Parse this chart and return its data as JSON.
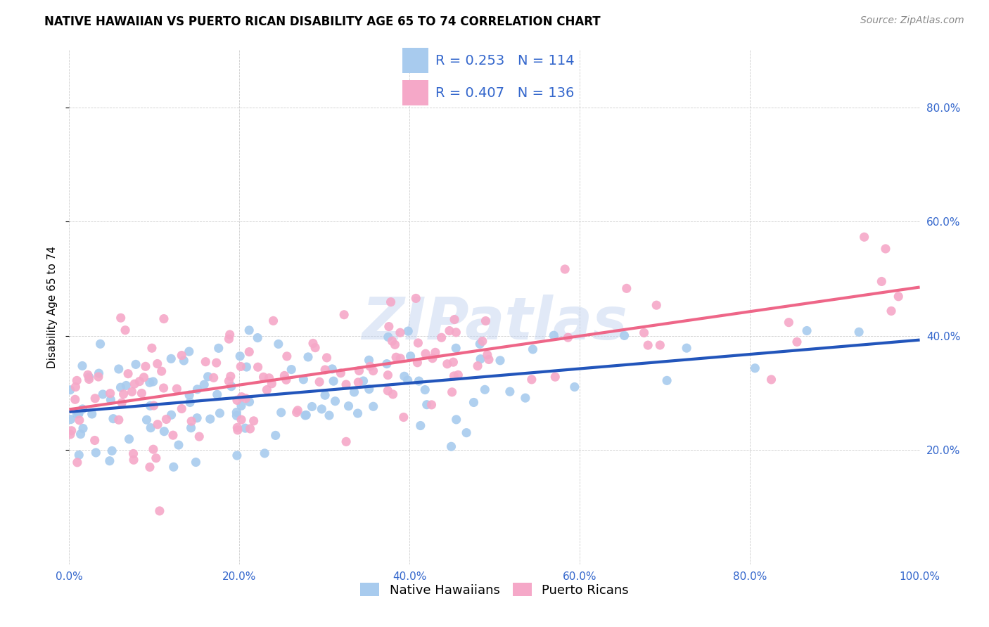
{
  "title": "NATIVE HAWAIIAN VS PUERTO RICAN DISABILITY AGE 65 TO 74 CORRELATION CHART",
  "source": "Source: ZipAtlas.com",
  "ylabel": "Disability Age 65 to 74",
  "R_blue": 0.253,
  "N_blue": 114,
  "R_pink": 0.407,
  "N_pink": 136,
  "blue_color": "#A8CBEE",
  "pink_color": "#F5A8C8",
  "blue_line_color": "#2255BB",
  "pink_line_color": "#EE6688",
  "watermark": "ZIPatlas",
  "legend_blue_label": "Native Hawaiians",
  "legend_pink_label": "Puerto Ricans",
  "xlim": [
    0.0,
    1.0
  ],
  "ylim": [
    0.0,
    0.9
  ],
  "x_tick_labels": [
    "0.0%",
    "",
    "20.0%",
    "",
    "40.0%",
    "",
    "60.0%",
    "",
    "80.0%",
    "",
    "100.0%"
  ],
  "y_tick_labels_right": [
    "20.0%",
    "40.0%",
    "60.0%",
    "80.0%"
  ],
  "title_fontsize": 12,
  "source_fontsize": 10,
  "tick_fontsize": 11,
  "ylabel_fontsize": 11
}
